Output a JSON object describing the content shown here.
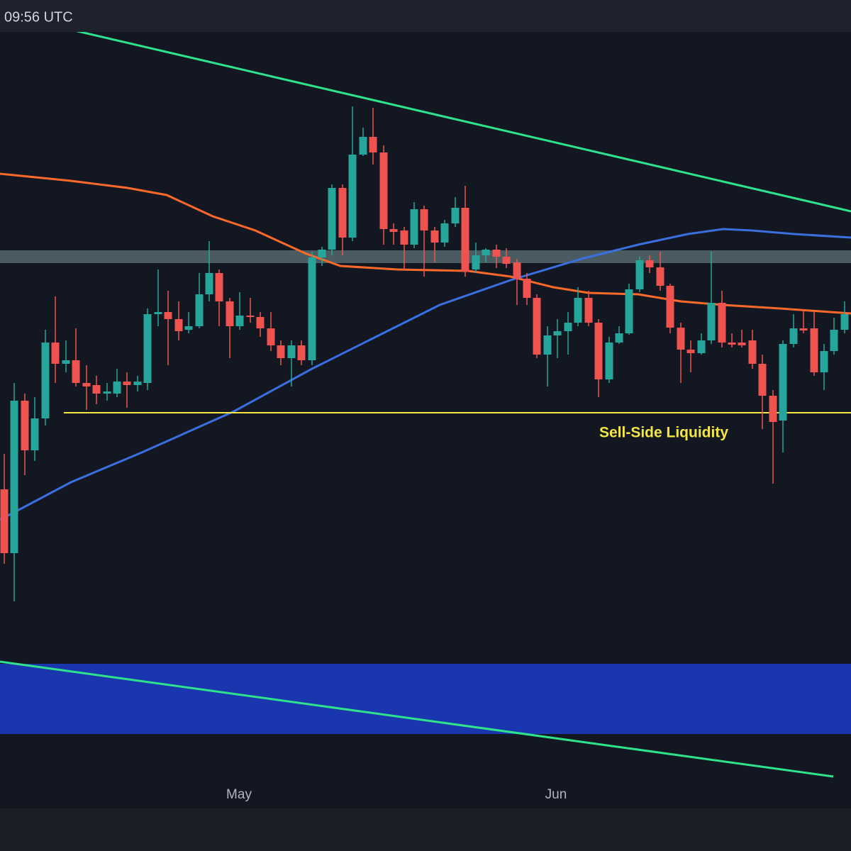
{
  "header": {
    "time": "09:56 UTC"
  },
  "chart_data": {
    "type": "candlestick",
    "xlim": [
      0,
      1200
    ],
    "ylim": [
      0,
      1200
    ],
    "xticks": [
      {
        "value": 337,
        "label": "May"
      },
      {
        "value": 784,
        "label": "Jun"
      }
    ],
    "up_color": "#26a69a",
    "down_color": "#ef5350",
    "candles": {
      "x": [
        6,
        20,
        35,
        49,
        64,
        78,
        93,
        107,
        122,
        136,
        151,
        165,
        179,
        194,
        208,
        223,
        237,
        252,
        266,
        281,
        295,
        309,
        324,
        338,
        353,
        367,
        382,
        396,
        411,
        425,
        440,
        454,
        468,
        483,
        497,
        512,
        526,
        541,
        555,
        570,
        584,
        598,
        613,
        627,
        642,
        656,
        671,
        685,
        700,
        714,
        729,
        743,
        757,
        772,
        786,
        801,
        815,
        830,
        844,
        859,
        873,
        887,
        902,
        916,
        931,
        945,
        960,
        974,
        989,
        1003,
        1018,
        1032,
        1046,
        1061,
        1075,
        1090,
        1104,
        1119,
        1133,
        1148,
        1162,
        1176,
        1191
      ],
      "open": [
        510,
        420,
        635,
        565,
        610,
        717,
        687,
        692,
        660,
        657,
        645,
        645,
        662,
        657,
        660,
        757,
        760,
        750,
        735,
        740,
        785,
        815,
        775,
        740,
        755,
        753,
        737,
        713,
        695,
        713,
        692,
        837,
        848,
        935,
        865,
        982,
        1007,
        985,
        877,
        875,
        855,
        905,
        875,
        858,
        885,
        907,
        820,
        840,
        848,
        838,
        830,
        807,
        780,
        700,
        727,
        733,
        745,
        780,
        745,
        665,
        717,
        730,
        792,
        833,
        823,
        797,
        738,
        707,
        702,
        720,
        773,
        717,
        717,
        720,
        687,
        642,
        607,
        715,
        737,
        737,
        675,
        705,
        735
      ],
      "high": [
        560,
        660,
        645,
        640,
        735,
        782,
        720,
        737,
        685,
        670,
        660,
        680,
        675,
        670,
        765,
        820,
        790,
        775,
        760,
        815,
        860,
        820,
        780,
        788,
        780,
        760,
        760,
        720,
        720,
        720,
        845,
        852,
        940,
        940,
        1050,
        1020,
        1048,
        995,
        885,
        880,
        915,
        910,
        880,
        890,
        922,
        938,
        858,
        850,
        855,
        850,
        835,
        815,
        785,
        740,
        750,
        760,
        795,
        790,
        750,
        725,
        740,
        800,
        838,
        840,
        845,
        800,
        745,
        720,
        730,
        845,
        790,
        730,
        735,
        735,
        700,
        650,
        720,
        757,
        762,
        760,
        715,
        752,
        775
      ],
      "low": [
        405,
        352,
        530,
        550,
        600,
        660,
        675,
        655,
        622,
        630,
        635,
        640,
        625,
        648,
        650,
        740,
        685,
        720,
        730,
        737,
        775,
        740,
        695,
        735,
        745,
        725,
        705,
        685,
        655,
        685,
        685,
        825,
        840,
        840,
        860,
        980,
        968,
        855,
        855,
        820,
        850,
        810,
        830,
        852,
        880,
        810,
        815,
        830,
        822,
        822,
        770,
        770,
        695,
        655,
        695,
        700,
        740,
        740,
        640,
        660,
        715,
        728,
        788,
        815,
        790,
        730,
        660,
        675,
        700,
        715,
        710,
        710,
        710,
        680,
        595,
        518,
        562,
        710,
        730,
        670,
        650,
        700,
        730
      ],
      "close": [
        420,
        635,
        565,
        610,
        717,
        687,
        692,
        660,
        655,
        645,
        648,
        662,
        657,
        662,
        757,
        760,
        750,
        733,
        740,
        785,
        815,
        775,
        740,
        755,
        753,
        737,
        713,
        695,
        713,
        692,
        837,
        848,
        935,
        865,
        982,
        1007,
        985,
        877,
        873,
        855,
        905,
        875,
        858,
        885,
        907,
        817,
        840,
        848,
        838,
        828,
        807,
        780,
        700,
        727,
        733,
        745,
        780,
        745,
        665,
        717,
        730,
        792,
        833,
        823,
        797,
        738,
        707,
        702,
        720,
        773,
        717,
        714,
        713,
        687,
        642,
        605,
        715,
        737,
        734,
        675,
        705,
        735,
        757
      ]
    },
    "lines": [
      {
        "color": "#ff6a2b",
        "x": [
          0,
          100,
          180,
          235,
          300,
          360,
          430,
          480,
          560,
          660,
          720,
          780,
          830,
          900,
          960,
          1020,
          1100,
          1200
        ],
        "values": [
          955,
          945,
          935,
          925,
          895,
          875,
          843,
          825,
          820,
          818,
          810,
          795,
          787,
          785,
          775,
          770,
          765,
          758
        ]
      },
      {
        "color": "#3b6fe0",
        "x": [
          0,
          100,
          200,
          330,
          440,
          520,
          620,
          720,
          820,
          900,
          970,
          1020,
          1060,
          1120,
          1200
        ],
        "values": [
          467,
          520,
          562,
          620,
          680,
          720,
          770,
          805,
          835,
          855,
          870,
          877,
          875,
          870,
          865
        ]
      },
      {
        "color": "#2ee38c",
        "x": [
          105,
          1200
        ],
        "values": [
          1157,
          902
        ]
      },
      {
        "color": "#2ee38c",
        "x": [
          0,
          1175
        ],
        "values": [
          267,
          105
        ]
      }
    ],
    "level": {
      "value": 618,
      "x": [
        90,
        1200
      ],
      "color": "#f5e642",
      "label": "Sell-Side Liquidity"
    },
    "zones": [
      {
        "color": "rgba(120,150,150,0.55)",
        "range": [
          829,
          847
        ]
      },
      {
        "color": "rgba(28,60,200,0.85)",
        "range": [
          165,
          264
        ]
      }
    ]
  }
}
